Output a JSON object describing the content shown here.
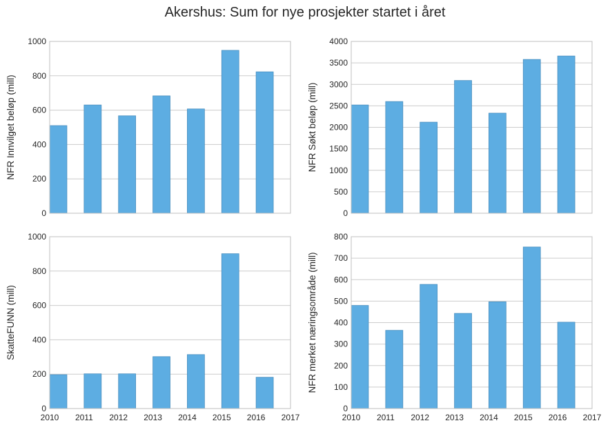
{
  "figure": {
    "title": "Akershus: Sum for nye prosjekter startet i året"
  },
  "style": {
    "bar_color": "#5DADE2",
    "bar_edge": "#4a8fbf",
    "grid_color": "#cccccc",
    "frame_color": "#bfbfbf"
  },
  "chart_data": [
    {
      "type": "bar",
      "ylabel": "NFR Innvilget beløp (mill)",
      "x": [
        2010,
        2011,
        2012,
        2013,
        2014,
        2015,
        2016
      ],
      "values": [
        510,
        630,
        567,
        683,
        607,
        948,
        823
      ],
      "xlim": [
        2010,
        2017
      ],
      "ylim": [
        0,
        1000
      ],
      "yticks": [
        0,
        200,
        400,
        600,
        800,
        1000
      ],
      "xticks": [],
      "grid": true
    },
    {
      "type": "bar",
      "ylabel": "NFR Søkt beløp (mill)",
      "x": [
        2010,
        2011,
        2012,
        2013,
        2014,
        2015,
        2016
      ],
      "values": [
        2520,
        2600,
        2120,
        3090,
        2330,
        3580,
        3660
      ],
      "xlim": [
        2010,
        2017
      ],
      "ylim": [
        0,
        4000
      ],
      "yticks": [
        0,
        500,
        1000,
        1500,
        2000,
        2500,
        3000,
        3500,
        4000
      ],
      "xticks": [],
      "grid": true
    },
    {
      "type": "bar",
      "ylabel": "SkatteFUNN (mill)",
      "x": [
        2010,
        2011,
        2012,
        2013,
        2014,
        2015,
        2016
      ],
      "values": [
        197,
        202,
        202,
        302,
        314,
        901,
        182
      ],
      "xlim": [
        2010,
        2017
      ],
      "ylim": [
        0,
        1000
      ],
      "yticks": [
        0,
        200,
        400,
        600,
        800,
        1000
      ],
      "xticks": [
        2010,
        2011,
        2012,
        2013,
        2014,
        2015,
        2016,
        2017
      ],
      "grid": true
    },
    {
      "type": "bar",
      "ylabel": "NFR merket næringsområde (mill)",
      "x": [
        2010,
        2011,
        2012,
        2013,
        2014,
        2015,
        2016
      ],
      "values": [
        480,
        364,
        578,
        443,
        497,
        752,
        402
      ],
      "xlim": [
        2010,
        2017
      ],
      "ylim": [
        0,
        800
      ],
      "yticks": [
        0,
        100,
        200,
        300,
        400,
        500,
        600,
        700,
        800
      ],
      "xticks": [
        2010,
        2011,
        2012,
        2013,
        2014,
        2015,
        2016,
        2017
      ],
      "grid": true
    }
  ]
}
